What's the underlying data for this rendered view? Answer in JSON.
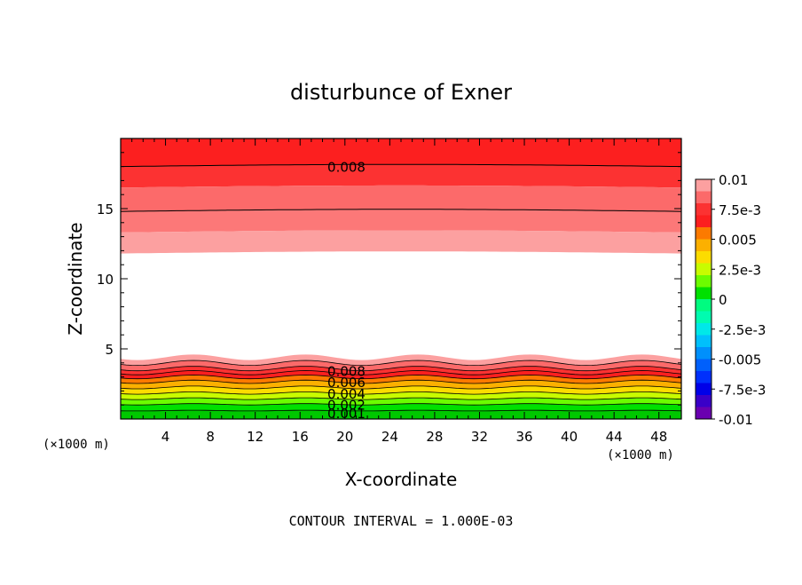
{
  "chart_data": {
    "type": "contour",
    "title": "disturbunce of Exner",
    "xlabel": "X-coordinate",
    "ylabel": "Z-coordinate",
    "x_unit": "(×1000 m)",
    "y_unit": "(×1000 m)",
    "xlim": [
      0,
      50
    ],
    "ylim": [
      0,
      20
    ],
    "x_ticks": [
      4,
      8,
      12,
      16,
      20,
      24,
      28,
      32,
      36,
      40,
      44,
      48
    ],
    "y_ticks": [
      5,
      10,
      15
    ],
    "footer": "CONTOUR INTERVAL = 1.000E-03",
    "contour_labels": [
      {
        "text": "0.008",
        "x": 18,
        "z": 18.0
      },
      {
        "text": "0.008",
        "x": 18,
        "z": 3.45
      },
      {
        "text": "0.006",
        "x": 18,
        "z": 2.65
      },
      {
        "text": "0.004",
        "x": 18,
        "z": 1.85
      },
      {
        "text": "0.002",
        "x": 18,
        "z": 1.05
      },
      {
        "text": "0.001",
        "x": 18,
        "z": 0.45
      }
    ],
    "colorbar": {
      "tick_labels": [
        "0.01",
        "7.5e-3",
        "0.005",
        "2.5e-3",
        "0",
        "-2.5e-3",
        "-0.005",
        "-7.5e-3",
        "-0.01"
      ],
      "tick_values": [
        0.01,
        0.0075,
        0.005,
        0.0025,
        0,
        -0.0025,
        -0.005,
        -0.0075,
        -0.01
      ],
      "bands": [
        {
          "from": 0.009,
          "to": 0.01,
          "color": "#fca0a0"
        },
        {
          "from": 0.008,
          "to": 0.009,
          "color": "#fc6a6a"
        },
        {
          "from": 0.007,
          "to": 0.008,
          "color": "#fc3232"
        },
        {
          "from": 0.006,
          "to": 0.007,
          "color": "#fc1f1f"
        },
        {
          "from": 0.005,
          "to": 0.006,
          "color": "#fc7a00"
        },
        {
          "from": 0.004,
          "to": 0.005,
          "color": "#fcb000"
        },
        {
          "from": 0.003,
          "to": 0.004,
          "color": "#fcdc00"
        },
        {
          "from": 0.002,
          "to": 0.003,
          "color": "#c8fc00"
        },
        {
          "from": 0.001,
          "to": 0.002,
          "color": "#6cfc00"
        },
        {
          "from": 0.0,
          "to": 0.001,
          "color": "#00e000"
        },
        {
          "from": -0.001,
          "to": 0.0,
          "color": "#00fc80"
        },
        {
          "from": -0.002,
          "to": -0.001,
          "color": "#00fcb0"
        },
        {
          "from": -0.003,
          "to": -0.002,
          "color": "#00e8e8"
        },
        {
          "from": -0.004,
          "to": -0.003,
          "color": "#00c0fc"
        },
        {
          "from": -0.005,
          "to": -0.004,
          "color": "#0090fc"
        },
        {
          "from": -0.006,
          "to": -0.005,
          "color": "#0060fc"
        },
        {
          "from": -0.007,
          "to": -0.006,
          "color": "#0030fc"
        },
        {
          "from": -0.008,
          "to": -0.007,
          "color": "#0000e8"
        },
        {
          "from": -0.009,
          "to": -0.008,
          "color": "#3a00c8"
        },
        {
          "from": -0.01,
          "to": -0.009,
          "color": "#6a00b0"
        }
      ]
    },
    "upper_field_bands": [
      {
        "z_bottom": 18.0,
        "z_top": 20.0,
        "color": "#fc1f1f"
      },
      {
        "z_bottom": 16.5,
        "z_top": 18.0,
        "color": "#fc3232"
      },
      {
        "z_bottom": 14.8,
        "z_top": 16.5,
        "color": "#fc6a6a"
      },
      {
        "z_bottom": 13.3,
        "z_top": 14.8,
        "color": "#fc7878"
      },
      {
        "z_bottom": 11.8,
        "z_top": 13.3,
        "color": "#fca0a0"
      }
    ],
    "lower_field_bands": [
      {
        "z_top": 4.4,
        "color": "#fca0a0"
      },
      {
        "z_top": 4.0,
        "color": "#fc6a6a"
      },
      {
        "z_top": 3.6,
        "color": "#fc3232"
      },
      {
        "z_top": 3.3,
        "color": "#fc1f1f"
      },
      {
        "z_top": 3.0,
        "color": "#fc7a00"
      },
      {
        "z_top": 2.65,
        "color": "#fcb000"
      },
      {
        "z_top": 2.25,
        "color": "#fcdc00"
      },
      {
        "z_top": 1.85,
        "color": "#c8fc00"
      },
      {
        "z_top": 1.45,
        "color": "#6cfc00"
      },
      {
        "z_top": 1.05,
        "color": "#00e000"
      },
      {
        "z_top": 0.6,
        "color": "#00c800"
      }
    ],
    "grid": false,
    "colors": {
      "contour_line": "#000000",
      "background": "#ffffff"
    }
  }
}
